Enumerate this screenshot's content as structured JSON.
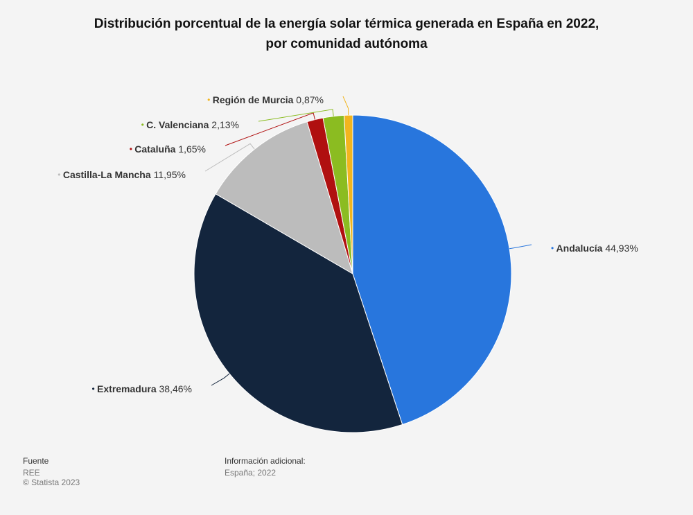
{
  "chart_data": {
    "type": "pie",
    "title": "Distribución porcentual de la energía solar térmica generada en España en 2022, por comunidad autónoma",
    "categories": [
      "Andalucía",
      "Extremadura",
      "Castilla-La Mancha",
      "Cataluña",
      "C. Valenciana",
      "Región de Murcia"
    ],
    "values": [
      44.93,
      38.46,
      11.95,
      1.65,
      2.13,
      0.87
    ],
    "value_labels": [
      "44,93%",
      "38,46%",
      "11,95%",
      "1,65%",
      "2,13%",
      "0,87%"
    ],
    "colors": [
      "#2876dd",
      "#13253d",
      "#bcbcbc",
      "#b01010",
      "#8bbc21",
      "#f2b51e"
    ]
  },
  "footer": {
    "source_title": "Fuente",
    "source": "REE",
    "copyright": "© Statista 2023",
    "info_title": "Información adicional:",
    "info": "España; 2022"
  }
}
